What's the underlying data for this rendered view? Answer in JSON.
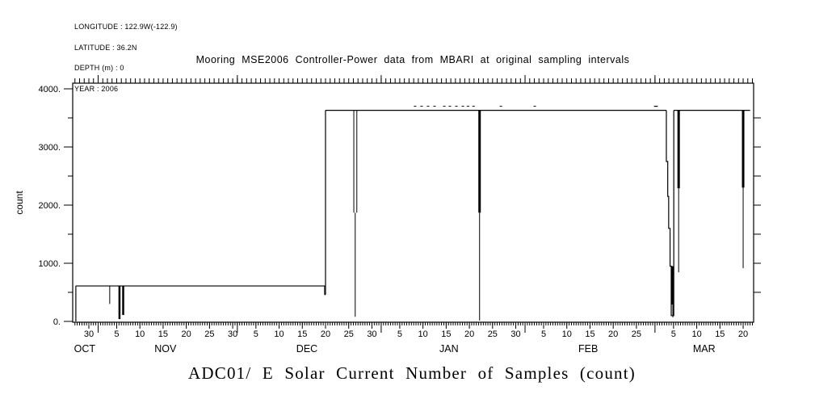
{
  "page": {
    "background": "#ffffff",
    "foreground": "#000000"
  },
  "meta_block": {
    "lines": [
      "LONGITUDE : 122.9W(-122.9)",
      "LATITUDE : 36.2N",
      "DEPTH (m) : 0",
      "YEAR : 2006"
    ]
  },
  "title": "Mooring MSE2006 Controller-Power data from MBARI at original sampling intervals",
  "footer_title": "ADC01/ E Solar Current Number of Samples (count)",
  "chart_data": {
    "type": "line",
    "title": "Mooring MSE2006 Controller-Power data from MBARI at original sampling intervals",
    "xlabel": "ADC01/ E Solar Current Number of Samples (count)",
    "ylabel": "count",
    "ylim": [
      0,
      4000
    ],
    "grid": false,
    "line_color": "#000000",
    "y_axis": {
      "major_ticks": [
        4000,
        3000,
        2000,
        1000,
        0
      ],
      "major_labels": [
        "4000.",
        "3000.",
        "2000.",
        "1000.",
        "0."
      ],
      "minor_ticks": [
        3500,
        2500,
        1500,
        500
      ],
      "right_ticks": [
        3500,
        3000,
        2500,
        2000,
        1500,
        1000,
        500
      ]
    },
    "x_axis": {
      "unit": "day (0 = Oct 30)",
      "range_days": [
        -3.4,
        143.2
      ],
      "minor_tick_step_days": 0.5,
      "top_tick_step_days": 1,
      "month_start_days": [
        2,
        32,
        63,
        94,
        122
      ],
      "major_ticks": [
        {
          "day": 0,
          "label": "30"
        },
        {
          "day": 6,
          "label": "5"
        },
        {
          "day": 11,
          "label": "10"
        },
        {
          "day": 16,
          "label": "15"
        },
        {
          "day": 21,
          "label": "20"
        },
        {
          "day": 26,
          "label": "25"
        },
        {
          "day": 31,
          "label": "30"
        },
        {
          "day": 36,
          "label": "5"
        },
        {
          "day": 41,
          "label": "10"
        },
        {
          "day": 46,
          "label": "15"
        },
        {
          "day": 51,
          "label": "20"
        },
        {
          "day": 56,
          "label": "25"
        },
        {
          "day": 61,
          "label": "30"
        },
        {
          "day": 67,
          "label": "5"
        },
        {
          "day": 72,
          "label": "10"
        },
        {
          "day": 77,
          "label": "15"
        },
        {
          "day": 82,
          "label": "20"
        },
        {
          "day": 87,
          "label": "25"
        },
        {
          "day": 92,
          "label": "30"
        },
        {
          "day": 98,
          "label": "5"
        },
        {
          "day": 103,
          "label": "10"
        },
        {
          "day": 108,
          "label": "15"
        },
        {
          "day": 113,
          "label": "20"
        },
        {
          "day": 118,
          "label": "25"
        },
        {
          "day": 126,
          "label": "5"
        },
        {
          "day": 131,
          "label": "10"
        },
        {
          "day": 136,
          "label": "15"
        },
        {
          "day": 141,
          "label": "20"
        }
      ],
      "months": [
        {
          "label": "OCT",
          "day": -0.9
        },
        {
          "label": "NOV",
          "day": 16.5
        },
        {
          "label": "DEC",
          "day": 47.0
        },
        {
          "label": "JAN",
          "day": 77.6
        },
        {
          "label": "FEB",
          "day": 107.6
        },
        {
          "label": "MAR",
          "day": 132.6
        }
      ]
    },
    "baseline_segments": [
      {
        "d0": -2.8,
        "d1": 50.9,
        "value": 610
      },
      {
        "d0": 50.8,
        "d1": 51.0,
        "value": 460
      },
      {
        "d0": 51.0,
        "d1": 124.45,
        "value": 3630
      },
      {
        "d0": 121.8,
        "d1": 122.6,
        "value": 3700
      },
      {
        "d0": 126.05,
        "d1": 142.5,
        "value": 3630
      }
    ],
    "transitions": [
      {
        "day": -2.8,
        "from": 0,
        "to": 610
      },
      {
        "day": 51.0,
        "from": 460,
        "to": 3630
      }
    ],
    "dropouts": [
      {
        "day": 4.5,
        "top": 610,
        "bottom": 300,
        "width": 1
      },
      {
        "day": 6.6,
        "top": 610,
        "bottom": 40,
        "width": 2.5
      },
      {
        "day": 7.4,
        "top": 610,
        "bottom": 110,
        "width": 2.5
      },
      {
        "day": 50.8,
        "top": 610,
        "bottom": 460,
        "width": 1
      },
      {
        "day": 57.1,
        "top": 3630,
        "bottom": 1870,
        "width": 1
      },
      {
        "day": 57.75,
        "top": 3630,
        "bottom": 1870,
        "width": 1
      },
      {
        "day": 57.4,
        "top": 1870,
        "bottom": 80,
        "width": 1
      },
      {
        "day": 84.2,
        "top": 3630,
        "bottom": 1870,
        "width": 3
      },
      {
        "day": 84.2,
        "top": 1870,
        "bottom": 15,
        "width": 1
      },
      {
        "day": 125.7,
        "top": 950,
        "bottom": 290,
        "width": 3
      },
      {
        "day": 125.85,
        "top": 290,
        "bottom": 70,
        "width": 1
      },
      {
        "day": 127.1,
        "top": 3630,
        "bottom": 2290,
        "width": 3
      },
      {
        "day": 127.1,
        "top": 2290,
        "bottom": 845,
        "width": 1
      },
      {
        "day": 141.0,
        "top": 3630,
        "bottom": 2300,
        "width": 3
      },
      {
        "day": 141.0,
        "top": 2300,
        "bottom": 915,
        "width": 1
      }
    ],
    "staircase": [
      [
        124.45,
        3630
      ],
      [
        124.45,
        2750
      ],
      [
        124.75,
        2750
      ],
      [
        124.75,
        2150
      ],
      [
        124.95,
        2150
      ],
      [
        124.95,
        1600
      ],
      [
        125.25,
        1600
      ],
      [
        125.25,
        950
      ],
      [
        125.5,
        950
      ],
      [
        125.5,
        100
      ],
      [
        126.05,
        100
      ],
      [
        126.05,
        3630
      ]
    ],
    "noise_marks": [
      {
        "day": 70.3,
        "value": 3700
      },
      {
        "day": 71.7,
        "value": 3700
      },
      {
        "day": 73.1,
        "value": 3700
      },
      {
        "day": 74.5,
        "value": 3700
      },
      {
        "day": 76.6,
        "value": 3700
      },
      {
        "day": 77.8,
        "value": 3700
      },
      {
        "day": 79.2,
        "value": 3700
      },
      {
        "day": 80.6,
        "value": 3700
      },
      {
        "day": 81.7,
        "value": 3700
      },
      {
        "day": 82.9,
        "value": 3700
      },
      {
        "day": 88.8,
        "value": 3700
      },
      {
        "day": 96.1,
        "value": 3700
      }
    ]
  }
}
